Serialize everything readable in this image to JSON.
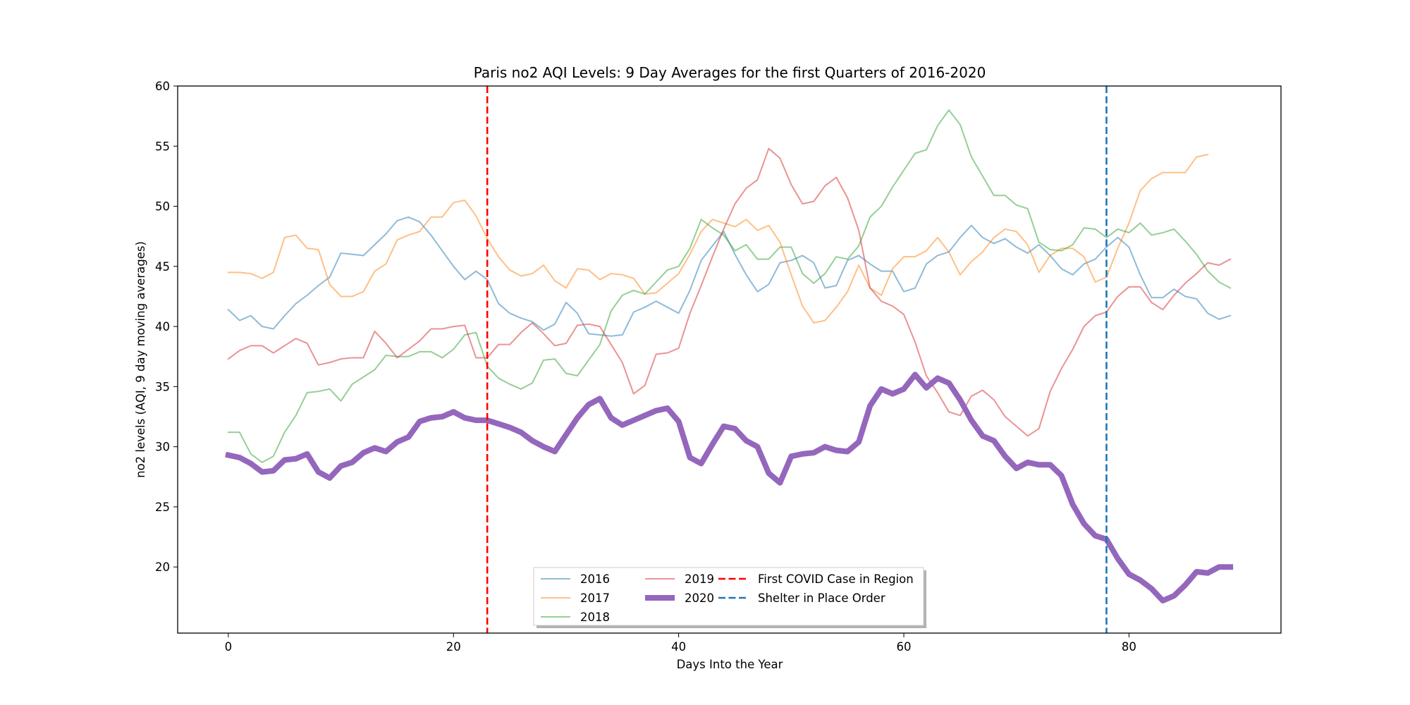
{
  "chart_data": {
    "type": "line",
    "title": "Paris no2 AQI Levels: 9 Day Averages for the first Quarters of 2016-2020",
    "xlabel": "Days Into the Year",
    "ylabel": "no2 levels (AQI, 9 day moving averages)",
    "xlim": [
      -4.5,
      93.5
    ],
    "ylim": [
      14.5,
      60
    ],
    "xticks": [
      0,
      20,
      40,
      60,
      80
    ],
    "yticks": [
      20,
      25,
      30,
      35,
      40,
      45,
      50,
      55,
      60
    ],
    "grid": false,
    "legend_position": "bottom-center",
    "series": [
      {
        "name": "2016",
        "color": "#1f77b4",
        "opacity": 0.5,
        "width": 1,
        "values": [
          41.4,
          40.5,
          40.9,
          40.0,
          39.8,
          40.9,
          41.9,
          42.6,
          43.4,
          44.1,
          46.1,
          46.0,
          45.9,
          46.8,
          47.7,
          48.8,
          49.1,
          48.7,
          47.6,
          46.3,
          45.0,
          43.9,
          44.6,
          43.9,
          41.9,
          41.1,
          40.7,
          40.4,
          39.7,
          40.2,
          42.0,
          41.1,
          39.4,
          39.3,
          39.2,
          39.3,
          41.2,
          41.6,
          42.1,
          41.6,
          41.1,
          43.0,
          45.5,
          46.7,
          47.9,
          46.0,
          44.3,
          42.9,
          43.5,
          45.3,
          45.5,
          45.9,
          45.3,
          43.2,
          43.4,
          45.5,
          45.9,
          45.2,
          44.6,
          44.6,
          42.9,
          43.2,
          45.2,
          45.9,
          46.2,
          47.4,
          48.4,
          47.4,
          46.9,
          47.3,
          46.6,
          46.1,
          46.8,
          45.9,
          44.8,
          44.3,
          45.2,
          45.6,
          46.6,
          47.4,
          46.6,
          44.3,
          42.4,
          42.4,
          43.1,
          42.5,
          42.3,
          41.1,
          40.6,
          40.9
        ]
      },
      {
        "name": "2017",
        "color": "#ff7f0e",
        "opacity": 0.5,
        "width": 1,
        "values": [
          44.5,
          44.5,
          44.4,
          44.0,
          44.5,
          47.4,
          47.6,
          46.5,
          46.4,
          43.5,
          42.5,
          42.5,
          42.9,
          44.6,
          45.2,
          47.2,
          47.6,
          47.9,
          49.1,
          49.1,
          50.3,
          50.5,
          49.2,
          47.3,
          45.8,
          44.7,
          44.2,
          44.4,
          45.1,
          43.8,
          43.2,
          44.8,
          44.7,
          43.9,
          44.4,
          44.3,
          44.0,
          42.7,
          42.8,
          43.6,
          44.4,
          46.0,
          47.9,
          48.9,
          48.6,
          48.3,
          48.9,
          48.0,
          48.4,
          47.0,
          44.3,
          41.7,
          40.3,
          40.5,
          41.6,
          42.9,
          45.1,
          43.2,
          42.6,
          44.8,
          45.8,
          45.8,
          46.3,
          47.4,
          46.2,
          44.3,
          45.4,
          46.2,
          47.4,
          48.1,
          47.9,
          46.8,
          44.5,
          45.9,
          46.5,
          46.5,
          45.8,
          43.7,
          44.1,
          46.5,
          48.6,
          51.3,
          52.3,
          52.8,
          52.8,
          52.8,
          54.1,
          54.3
        ]
      },
      {
        "name": "2018",
        "color": "#2ca02c",
        "opacity": 0.5,
        "width": 1,
        "values": [
          31.2,
          31.2,
          29.4,
          28.7,
          29.2,
          31.2,
          32.6,
          34.5,
          34.6,
          34.8,
          33.8,
          35.2,
          35.8,
          36.4,
          37.6,
          37.5,
          37.5,
          37.9,
          37.9,
          37.4,
          38.1,
          39.3,
          39.5,
          36.7,
          35.7,
          35.2,
          34.8,
          35.3,
          37.2,
          37.3,
          36.1,
          35.9,
          37.2,
          38.5,
          41.3,
          42.6,
          43.0,
          42.7,
          43.7,
          44.7,
          45.0,
          46.5,
          48.9,
          48.2,
          47.6,
          46.3,
          46.8,
          45.6,
          45.6,
          46.6,
          46.6,
          44.4,
          43.6,
          44.4,
          45.8,
          45.6,
          46.7,
          49.1,
          50.0,
          51.6,
          53.0,
          54.4,
          54.7,
          56.7,
          58.0,
          56.8,
          54.1,
          52.5,
          50.9,
          50.9,
          50.1,
          49.8,
          47.0,
          46.4,
          46.3,
          46.8,
          48.2,
          48.1,
          47.4,
          48.1,
          47.8,
          48.6,
          47.6,
          47.8,
          48.1,
          47.1,
          46.0,
          44.6,
          43.7,
          43.2
        ]
      },
      {
        "name": "2019",
        "color": "#d62728",
        "opacity": 0.5,
        "width": 1,
        "values": [
          37.3,
          38.0,
          38.4,
          38.4,
          37.8,
          38.4,
          39.0,
          38.6,
          36.8,
          37.0,
          37.3,
          37.4,
          37.4,
          39.6,
          38.6,
          37.4,
          38.1,
          38.8,
          39.8,
          39.8,
          40.0,
          40.1,
          37.4,
          37.4,
          38.5,
          38.5,
          39.5,
          40.3,
          39.4,
          38.4,
          38.6,
          40.1,
          40.2,
          40.0,
          38.5,
          37.0,
          34.4,
          35.1,
          37.7,
          37.8,
          38.2,
          41.1,
          43.4,
          45.8,
          48.1,
          50.2,
          51.5,
          52.2,
          54.8,
          54.0,
          51.8,
          50.2,
          50.4,
          51.7,
          52.4,
          50.7,
          48.0,
          43.2,
          42.1,
          41.7,
          41.0,
          38.7,
          35.9,
          34.5,
          32.9,
          32.6,
          34.2,
          34.7,
          33.9,
          32.5,
          31.7,
          30.9,
          31.5,
          34.6,
          36.5,
          38.1,
          40.0,
          40.9,
          41.2,
          42.5,
          43.3,
          43.3,
          42.0,
          41.4,
          42.6,
          43.6,
          44.4,
          45.3,
          45.1,
          45.6
        ]
      },
      {
        "name": "2020",
        "color": "#9467bd",
        "opacity": 1,
        "width": 4,
        "values": [
          29.3,
          29.1,
          28.6,
          27.9,
          28.0,
          28.9,
          29.0,
          29.4,
          27.9,
          27.4,
          28.4,
          28.7,
          29.5,
          29.9,
          29.6,
          30.4,
          30.8,
          32.1,
          32.4,
          32.5,
          32.9,
          32.4,
          32.2,
          32.2,
          31.9,
          31.6,
          31.2,
          30.5,
          30.0,
          29.6,
          31.0,
          32.4,
          33.5,
          34.0,
          32.4,
          31.8,
          32.2,
          32.6,
          33.0,
          33.2,
          32.1,
          29.1,
          28.6,
          30.2,
          31.7,
          31.5,
          30.5,
          30.0,
          27.8,
          27.0,
          29.2,
          29.4,
          29.5,
          30.0,
          29.7,
          29.6,
          30.4,
          33.4,
          34.8,
          34.4,
          34.8,
          36.0,
          34.9,
          35.7,
          35.3,
          33.9,
          32.2,
          30.9,
          30.5,
          29.2,
          28.2,
          28.7,
          28.5,
          28.5,
          27.6,
          25.2,
          23.6,
          22.6,
          22.3,
          20.7,
          19.4,
          18.9,
          18.2,
          17.2,
          17.6,
          18.5,
          19.6,
          19.5,
          20.0,
          20.0
        ]
      }
    ],
    "vlines": [
      {
        "name": "First COVID Case in Region",
        "x": 23,
        "color": "#ff0000"
      },
      {
        "name": "Shelter in Place Order",
        "x": 78,
        "color": "#1f77b4"
      }
    ]
  }
}
